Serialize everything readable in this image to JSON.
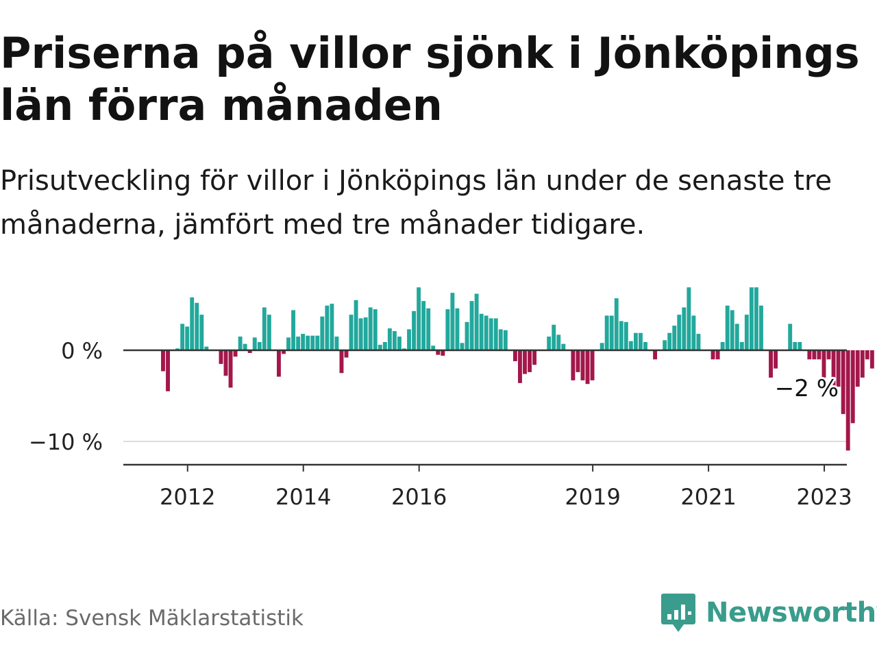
{
  "title": "Priserna på villor sjönk i Jönköpings län förra månaden",
  "subtitle": "Prisutveckling för villor i Jönköpings län under de senaste tre månaderna, jämfört med tre månader tidigare.",
  "source": "Källa: Svensk Mäklarstatistik",
  "brand": {
    "name": "Newsworthy",
    "icon": "newsworthy-logo-icon",
    "color": "#3a9c8c"
  },
  "colors": {
    "positive": "#22a89c",
    "negative": "#a3174a",
    "axis": "#333333",
    "grid": "#dddddd",
    "tick_text": "#222222"
  },
  "chart_data": {
    "type": "bar",
    "title": "",
    "xlabel": "",
    "ylabel": "",
    "y_unit": "%",
    "ylim": [
      -12.5,
      7
    ],
    "y_ticks": [
      0,
      -10
    ],
    "y_tick_labels": [
      "0 %",
      "−10 %"
    ],
    "x_tick_labels": [
      "2012",
      "2014",
      "2016",
      "2019",
      "2021",
      "2023"
    ],
    "last_value_label": "−2 %",
    "grid": "horizontal gridline at −10 %",
    "legend": "none",
    "start_year": 2011,
    "start_month": 7,
    "values": [
      0,
      -2.3,
      -4.5,
      0,
      0.2,
      2.9,
      2.6,
      5.8,
      5.2,
      3.9,
      0.4,
      0,
      0,
      -1.5,
      -2.8,
      -4.1,
      -0.7,
      1.5,
      0.7,
      -0.3,
      1.4,
      0.9,
      4.7,
      3.9,
      0,
      -2.9,
      -0.4,
      1.4,
      4.4,
      1.5,
      1.8,
      1.6,
      1.6,
      1.6,
      3.7,
      4.9,
      5.1,
      1.5,
      -2.5,
      -0.8,
      3.9,
      5.5,
      3.5,
      3.6,
      4.7,
      4.5,
      0.6,
      0.9,
      2.4,
      2.1,
      1.5,
      0.2,
      2.3,
      4.3,
      6.9,
      5.4,
      4.6,
      0.5,
      -0.5,
      -0.6,
      4.5,
      6.3,
      4.6,
      0.8,
      3.1,
      5.4,
      6.2,
      4.0,
      3.8,
      3.5,
      3.5,
      2.3,
      2.2,
      0,
      -1.2,
      -3.6,
      -2.6,
      -2.4,
      -1.6,
      0,
      0,
      1.5,
      2.8,
      1.7,
      0.7,
      0,
      -3.3,
      -2.4,
      -3.3,
      -3.7,
      -3.3,
      0,
      0.8,
      3.8,
      3.8,
      5.7,
      3.2,
      3.1,
      1.0,
      1.9,
      1.9,
      0.9,
      0,
      -1.0,
      0,
      1.1,
      1.9,
      2.7,
      3.9,
      4.7,
      6.9,
      3.8,
      1.8,
      0,
      0,
      -1.0,
      -1.0,
      0.9,
      4.9,
      4.4,
      2.9,
      0.9,
      3.9,
      6.9,
      6.9,
      4.9,
      0,
      -3.0,
      -2.0,
      0,
      0,
      2.9,
      0.9,
      0.9,
      0,
      -1.0,
      -1.0,
      -1.0,
      -3.0,
      -1.0,
      -4.0,
      -4.0,
      -7.0,
      -11.0,
      -8.0,
      -4.0,
      -3.0,
      -1.0,
      -2.0
    ]
  }
}
